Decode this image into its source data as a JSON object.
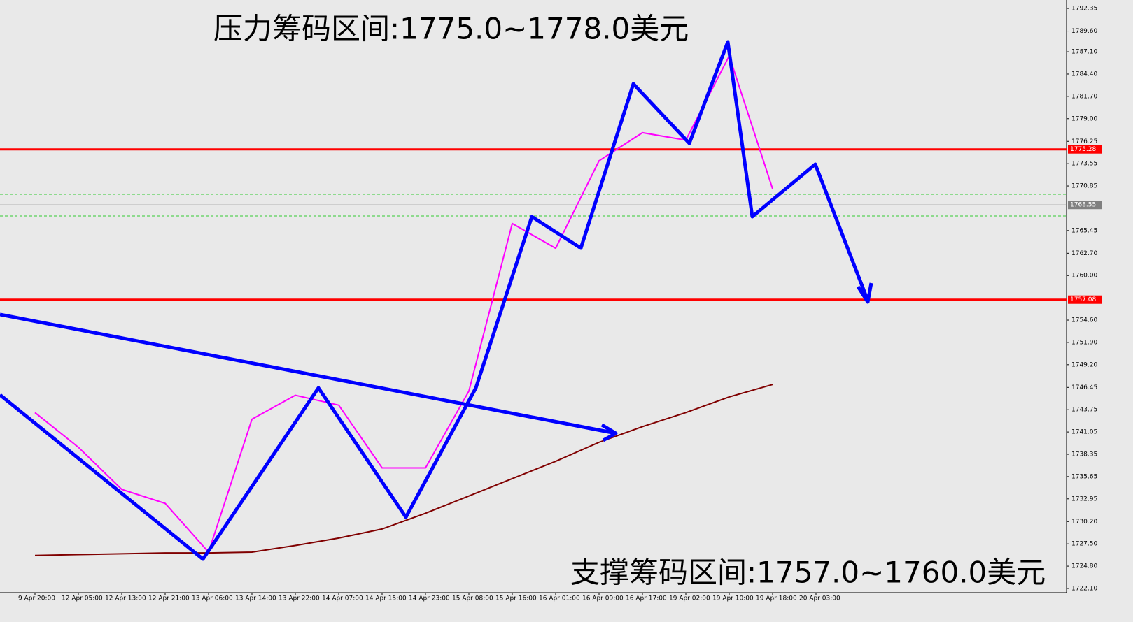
{
  "chart_data": {
    "type": "line",
    "annotations": [
      "压力筹码区间:1775.0~1778.0美元",
      "支撑筹码区间:1757.0~1760.0美元"
    ],
    "categories": [
      "9 Apr 20:00",
      "12 Apr 05:00",
      "12 Apr 13:00",
      "12 Apr 21:00",
      "13 Apr 06:00",
      "13 Apr 14:00",
      "13 Apr 22:00",
      "14 Apr 07:00",
      "14 Apr 15:00",
      "14 Apr 23:00",
      "15 Apr 08:00",
      "15 Apr 16:00",
      "16 Apr 01:00",
      "16 Apr 09:00",
      "16 Apr 17:00",
      "19 Apr 02:00",
      "19 Apr 10:00",
      "19 Apr 18:00",
      "20 Apr 03:00"
    ],
    "series": [
      {
        "color": "#ff00ff",
        "values": [
          1743.4,
          1739.2,
          1734.1,
          1732.4,
          1726.5,
          1742.6,
          1745.5,
          1744.3,
          1736.7,
          1736.7,
          1746.0,
          1766.3,
          1763.3,
          1773.9,
          1777.3,
          1776.4,
          1786.6,
          1770.5,
          null
        ]
      },
      {
        "color": "#800000",
        "values": [
          1726.1,
          1726.2,
          1726.3,
          1726.4,
          1726.4,
          1726.5,
          1727.3,
          1728.2,
          1729.3,
          1731.2,
          1733.3,
          1735.4,
          1737.5,
          1739.8,
          1741.7,
          1743.4,
          1745.3,
          1746.8,
          null
        ]
      }
    ],
    "levels": [
      {
        "value": 1775.28,
        "label": "1775.28",
        "color": "#ff0000"
      },
      {
        "value": 1757.08,
        "label": "1757.08",
        "color": "#ff0000"
      },
      {
        "value": 1768.55,
        "label": "1768.55",
        "color": "#808080"
      }
    ],
    "ylim": [
      1721.59,
      1793.37
    ],
    "yticks": [
      {
        "value": 1792.35,
        "label": "1792.35"
      },
      {
        "value": 1789.6,
        "label": "1789.60"
      },
      {
        "value": 1787.1,
        "label": "1787.10"
      },
      {
        "value": 1784.4,
        "label": "1784.40"
      },
      {
        "value": 1781.7,
        "label": "1781.70"
      },
      {
        "value": 1779.0,
        "label": "1779.00"
      },
      {
        "value": 1776.25,
        "label": "1776.25"
      },
      {
        "value": 1773.55,
        "label": "1773.55"
      },
      {
        "value": 1770.85,
        "label": "1770.85"
      },
      {
        "value": 1765.45,
        "label": "1765.45"
      },
      {
        "value": 1762.7,
        "label": "1762.70"
      },
      {
        "value": 1760.0,
        "label": "1760.00"
      },
      {
        "value": 1754.6,
        "label": "1754.60"
      },
      {
        "value": 1751.9,
        "label": "1751.90"
      },
      {
        "value": 1749.2,
        "label": "1749.20"
      },
      {
        "value": 1746.45,
        "label": "1746.45"
      },
      {
        "value": 1743.75,
        "label": "1743.75"
      },
      {
        "value": 1741.05,
        "label": "1741.05"
      },
      {
        "value": 1738.35,
        "label": "1738.35"
      },
      {
        "value": 1735.65,
        "label": "1735.65"
      },
      {
        "value": 1732.95,
        "label": "1732.95"
      },
      {
        "value": 1730.2,
        "label": "1730.20"
      },
      {
        "value": 1727.5,
        "label": "1727.50"
      },
      {
        "value": 1724.8,
        "label": "1724.80"
      },
      {
        "value": 1722.1,
        "label": "1722.10"
      }
    ]
  }
}
